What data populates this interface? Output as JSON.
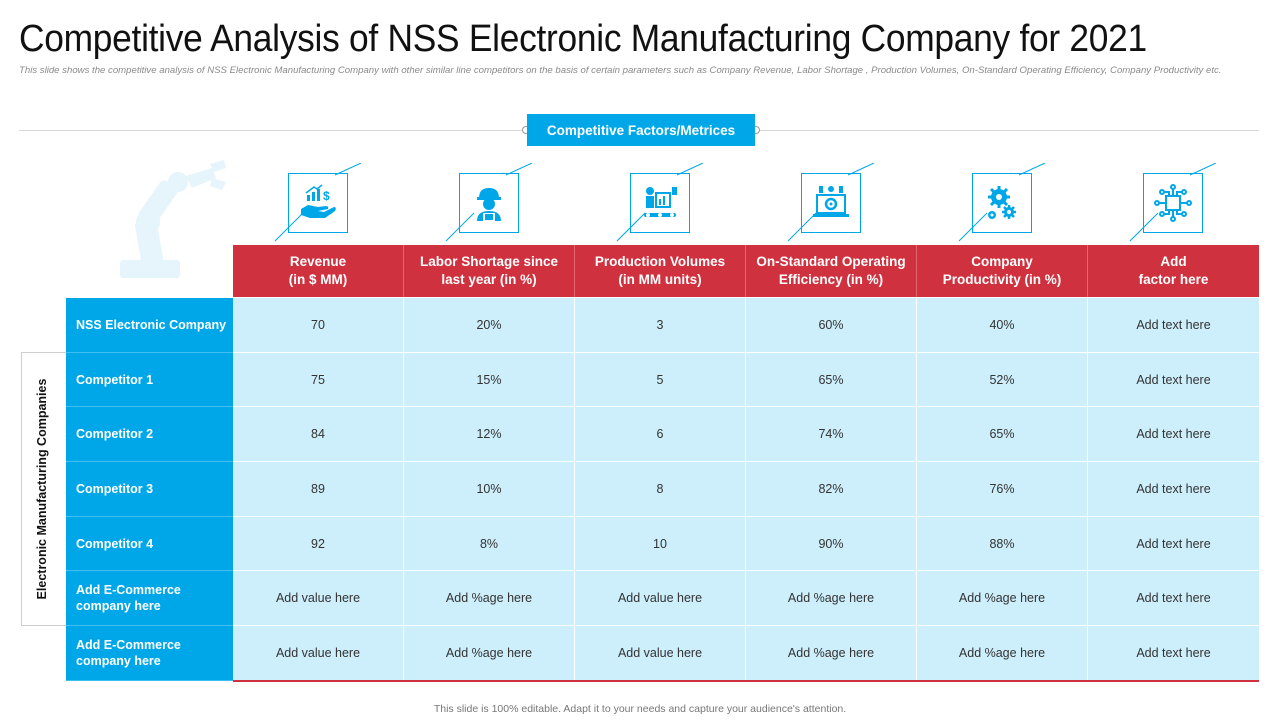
{
  "title": "Competitive Analysis of NSS Electronic Manufacturing Company for 2021",
  "subtitle": "This slide shows the competitive analysis of NSS Electronic Manufacturing Company with other similar line competitors on the basis of certain parameters such as Company Revenue, Labor Shortage , Production Volumes, On-Standard Operating Efficiency, Company Productivity etc.",
  "metrics_badge": "Competitive Factors/Metrices",
  "side_label": "Electronic Manufacturing Companies",
  "colors": {
    "accent_blue": "#00a7e8",
    "header_red": "#d0313f",
    "cell_bg": "#cdeefb"
  },
  "columns": [
    {
      "label": "Revenue\n(in $ MM)",
      "icon": "revenue-hand-dollar-icon"
    },
    {
      "label": "Labor Shortage since\nlast year (in %)",
      "icon": "worker-icon"
    },
    {
      "label": "Production Volumes\n(in MM units)",
      "icon": "production-icon"
    },
    {
      "label": "On-Standard Operating\nEfficiency (in %)",
      "icon": "efficiency-laptop-icon"
    },
    {
      "label": "Company\nProductivity  (in %)",
      "icon": "gears-icon"
    },
    {
      "label": "Add\nfactor here",
      "icon": "circuit-chip-icon"
    }
  ],
  "rows": [
    {
      "label": "NSS Electronic Company",
      "values": [
        "70",
        "20%",
        "3",
        "60%",
        "40%",
        "Add text here"
      ]
    },
    {
      "label": "Competitor 1",
      "values": [
        "75",
        "15%",
        "5",
        "65%",
        "52%",
        "Add text here"
      ]
    },
    {
      "label": "Competitor 2",
      "values": [
        "84",
        "12%",
        "6",
        "74%",
        "65%",
        "Add text here"
      ]
    },
    {
      "label": "Competitor 3",
      "values": [
        "89",
        "10%",
        "8",
        "82%",
        "76%",
        "Add text here"
      ]
    },
    {
      "label": "Competitor 4",
      "values": [
        "92",
        "8%",
        "10",
        "90%",
        "88%",
        "Add text here"
      ]
    },
    {
      "label": "Add E-Commerce company here",
      "values": [
        "Add value here",
        "Add %age here",
        "Add value here",
        "Add %age here",
        "Add %age here",
        "Add text here"
      ]
    },
    {
      "label": "Add E-Commerce company here",
      "values": [
        "Add value here",
        "Add %age here",
        "Add value here",
        "Add %age here",
        "Add %age here",
        "Add text here"
      ]
    }
  ],
  "footer": "This slide is 100% editable. Adapt it to your needs and capture your audience's attention."
}
